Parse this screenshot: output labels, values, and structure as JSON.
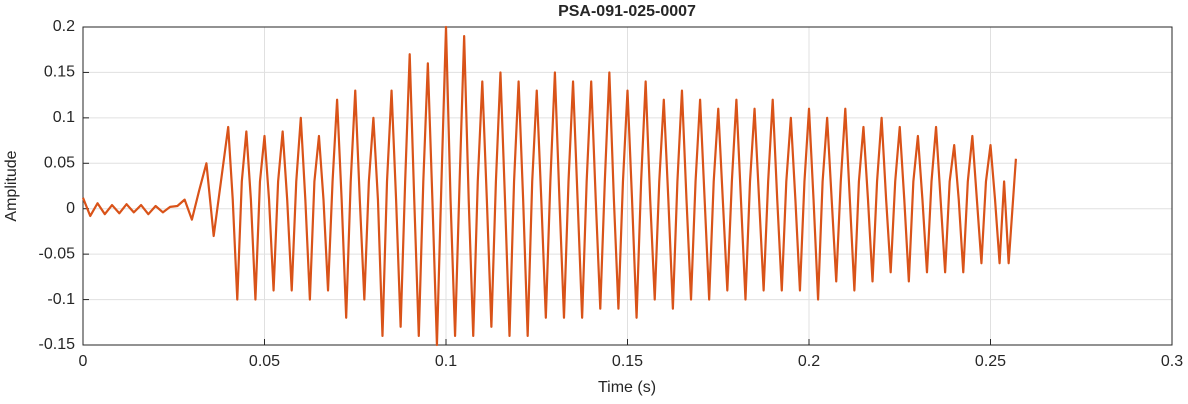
{
  "chart_data": {
    "type": "line",
    "title": "PSA-091-025-0007",
    "xlabel": "Time (s)",
    "ylabel": "Amplitude",
    "color": "#D95319",
    "grid": true,
    "xlim": [
      0,
      0.3
    ],
    "xticks": [
      0,
      0.05,
      0.1,
      0.15,
      0.2,
      0.25,
      0.3
    ],
    "ylim": [
      -0.15,
      0.2
    ],
    "yticks": [
      -0.15,
      -0.1,
      -0.05,
      0,
      0.05,
      0.1,
      0.15,
      0.2
    ],
    "x": [
      0,
      0.002,
      0.004,
      0.006,
      0.008,
      0.01,
      0.012,
      0.014,
      0.016,
      0.018,
      0.02,
      0.022,
      0.024,
      0.026,
      0.028,
      0.03,
      0.032,
      0.034,
      0.036,
      0.038,
      0.04,
      0.04125,
      0.0425,
      0.04375,
      0.045,
      0.04625,
      0.0475,
      0.04875,
      0.05,
      0.05125,
      0.0525,
      0.05375,
      0.055,
      0.05625,
      0.0575,
      0.05875,
      0.06,
      0.06125,
      0.0625,
      0.06375,
      0.065,
      0.06625,
      0.0675,
      0.06875,
      0.07,
      0.07125,
      0.0725,
      0.07375,
      0.075,
      0.07625,
      0.0775,
      0.07875,
      0.08,
      0.08125,
      0.0825,
      0.08375,
      0.085,
      0.08625,
      0.0875,
      0.08875,
      0.09,
      0.09125,
      0.0925,
      0.09375,
      0.095,
      0.09625,
      0.0975,
      0.09875,
      0.1,
      0.10125,
      0.1025,
      0.10375,
      0.105,
      0.10625,
      0.1075,
      0.10875,
      0.11,
      0.11125,
      0.1125,
      0.11375,
      0.115,
      0.11625,
      0.1175,
      0.11875,
      0.12,
      0.12125,
      0.1225,
      0.12375,
      0.125,
      0.12625,
      0.1275,
      0.12875,
      0.13,
      0.13125,
      0.1325,
      0.13375,
      0.135,
      0.13625,
      0.1375,
      0.13875,
      0.14,
      0.14125,
      0.1425,
      0.14375,
      0.145,
      0.14625,
      0.1475,
      0.14875,
      0.15,
      0.15125,
      0.1525,
      0.15375,
      0.155,
      0.15625,
      0.1575,
      0.15875,
      0.16,
      0.16125,
      0.1625,
      0.16375,
      0.165,
      0.16625,
      0.1675,
      0.16875,
      0.17,
      0.17125,
      0.1725,
      0.17375,
      0.175,
      0.17625,
      0.1775,
      0.17875,
      0.18,
      0.18125,
      0.1825,
      0.18375,
      0.185,
      0.18625,
      0.1875,
      0.18875,
      0.19,
      0.19125,
      0.1925,
      0.19375,
      0.195,
      0.19625,
      0.1975,
      0.19875,
      0.2,
      0.20125,
      0.2025,
      0.20375,
      0.205,
      0.20625,
      0.2075,
      0.20875,
      0.21,
      0.21125,
      0.2125,
      0.21375,
      0.215,
      0.21625,
      0.2175,
      0.21875,
      0.22,
      0.22125,
      0.2225,
      0.22375,
      0.225,
      0.22625,
      0.2275,
      0.22875,
      0.23,
      0.23125,
      0.2325,
      0.23375,
      0.235,
      0.23625,
      0.2375,
      0.23875,
      0.24,
      0.24125,
      0.2425,
      0.24375,
      0.245,
      0.24625,
      0.2475,
      0.24875,
      0.25,
      0.25125,
      0.2525,
      0.25375,
      0.255,
      0.257
    ],
    "values": [
      0.012,
      -0.008,
      0.006,
      -0.006,
      0.004,
      -0.005,
      0.005,
      -0.004,
      0.004,
      -0.006,
      0.003,
      -0.004,
      0.002,
      0.003,
      0.01,
      -0.012,
      0.02,
      0.05,
      -0.03,
      0.03,
      0.09,
      0.01,
      -0.1,
      0.03,
      0.085,
      0.01,
      -0.1,
      0.03,
      0.08,
      0.01,
      -0.09,
      0.03,
      0.085,
      0.01,
      -0.09,
      0.03,
      0.1,
      0.01,
      -0.1,
      0.03,
      0.08,
      0.01,
      -0.09,
      0.03,
      0.12,
      0.01,
      -0.12,
      0.03,
      0.13,
      0.01,
      -0.1,
      0.03,
      0.1,
      0.01,
      -0.14,
      0.03,
      0.13,
      0.01,
      -0.13,
      0.03,
      0.17,
      0.01,
      -0.14,
      0.03,
      0.16,
      0.01,
      -0.15,
      0.03,
      0.2,
      0.01,
      -0.14,
      0.03,
      0.19,
      0.01,
      -0.14,
      0.03,
      0.14,
      0.01,
      -0.13,
      0.03,
      0.15,
      0.01,
      -0.14,
      0.03,
      0.14,
      0.01,
      -0.14,
      0.03,
      0.13,
      0.01,
      -0.12,
      0.03,
      0.15,
      0.01,
      -0.12,
      0.03,
      0.14,
      0.01,
      -0.12,
      0.03,
      0.14,
      0.01,
      -0.11,
      0.03,
      0.15,
      0.01,
      -0.11,
      0.03,
      0.13,
      0.01,
      -0.12,
      0.03,
      0.14,
      0.01,
      -0.1,
      0.03,
      0.12,
      0.01,
      -0.11,
      0.03,
      0.13,
      0.01,
      -0.1,
      0.03,
      0.12,
      0.01,
      -0.1,
      0.03,
      0.11,
      0.01,
      -0.09,
      0.03,
      0.12,
      0.01,
      -0.1,
      0.03,
      0.11,
      0.01,
      -0.09,
      0.03,
      0.12,
      0.01,
      -0.09,
      0.03,
      0.1,
      0.01,
      -0.09,
      0.03,
      0.11,
      0.01,
      -0.1,
      0.03,
      0.1,
      0.01,
      -0.08,
      0.03,
      0.11,
      0.01,
      -0.09,
      0.03,
      0.09,
      0.01,
      -0.08,
      0.03,
      0.1,
      0.01,
      -0.07,
      0.03,
      0.09,
      0.01,
      -0.08,
      0.03,
      0.08,
      0.01,
      -0.07,
      0.03,
      0.09,
      0.01,
      -0.07,
      0.03,
      0.07,
      0.01,
      -0.07,
      0.03,
      0.08,
      0.01,
      -0.06,
      0.03,
      0.07,
      0.01,
      -0.06,
      0.03,
      -0.06,
      0.055
    ]
  }
}
